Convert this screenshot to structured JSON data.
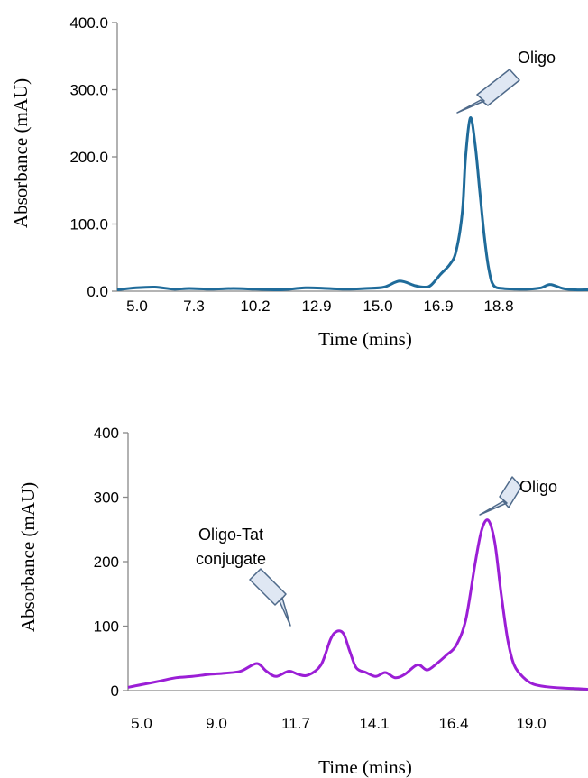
{
  "chart_data": [
    {
      "type": "line",
      "xlabel": "Time (mins)",
      "ylabel": "Absorbance  (mAU)",
      "x_tick_labels": [
        "5.0",
        "7.3",
        "10.2",
        "12.9",
        "15.0",
        "16.9",
        "18.8"
      ],
      "y_tick_labels": [
        "0.0",
        "100.0",
        "200.0",
        "300.0",
        "400.0"
      ],
      "xlim": [
        5.0,
        20.0
      ],
      "ylim": [
        0,
        400
      ],
      "grid": false,
      "series": [
        {
          "color": "#1f6b9a",
          "x": [
            5.0,
            5.6,
            6.2,
            6.8,
            7.3,
            8.0,
            8.7,
            9.4,
            10.2,
            11.0,
            11.7,
            12.3,
            12.9,
            13.5,
            14.0,
            14.5,
            14.8,
            15.0,
            15.3,
            15.6,
            15.8,
            16.0,
            16.1,
            16.25,
            16.4,
            16.55,
            16.7,
            16.85,
            17.0,
            17.3,
            17.7,
            18.1,
            18.5,
            18.8,
            19.2,
            19.6,
            20.0
          ],
          "y": [
            2,
            5,
            6,
            3,
            4,
            3,
            4,
            3,
            2,
            5,
            4,
            3,
            4,
            6,
            15,
            8,
            6,
            9,
            25,
            40,
            60,
            120,
            200,
            258,
            220,
            150,
            80,
            30,
            8,
            4,
            3,
            3,
            5,
            10,
            4,
            2,
            2
          ]
        }
      ],
      "annotations": [
        {
          "text": "Oligo",
          "x": 16.4,
          "y": 258
        }
      ]
    },
    {
      "type": "line",
      "xlabel": "Time (mins)",
      "ylabel": "Absorbance  (mAU)",
      "x_tick_labels": [
        "5.0",
        "9.0",
        "11.7",
        "14.1",
        "16.4",
        "19.0"
      ],
      "y_tick_labels": [
        "0",
        "100",
        "200",
        "300",
        "400"
      ],
      "xlim": [
        5.0,
        19.3
      ],
      "ylim": [
        0,
        400
      ],
      "grid": false,
      "series": [
        {
          "color": "#9b1ed6",
          "x": [
            5.0,
            5.5,
            6.0,
            6.5,
            7.0,
            7.5,
            8.0,
            8.5,
            9.0,
            9.3,
            9.6,
            10.0,
            10.3,
            10.6,
            11.0,
            11.3,
            11.5,
            11.7,
            11.9,
            12.1,
            12.4,
            12.7,
            13.0,
            13.3,
            13.6,
            14.0,
            14.3,
            14.6,
            14.9,
            15.2,
            15.5,
            15.8,
            16.0,
            16.2,
            16.4,
            16.6,
            16.8,
            17.0,
            17.3,
            17.6,
            18.0,
            18.5,
            19.0,
            19.3
          ],
          "y": [
            5,
            10,
            15,
            20,
            22,
            25,
            27,
            30,
            42,
            30,
            22,
            30,
            25,
            24,
            40,
            80,
            92,
            88,
            60,
            35,
            28,
            22,
            28,
            20,
            25,
            40,
            32,
            42,
            55,
            70,
            110,
            200,
            250,
            264,
            230,
            150,
            80,
            40,
            20,
            10,
            6,
            4,
            3,
            2
          ]
        }
      ],
      "annotations": [
        {
          "text": "Oligo",
          "x": 16.2,
          "y": 264
        },
        {
          "text": "Oligo-Tat",
          "x": 11.6,
          "y": 92
        },
        {
          "text": "conjugate",
          "x": 11.6,
          "y": 92
        }
      ]
    }
  ]
}
